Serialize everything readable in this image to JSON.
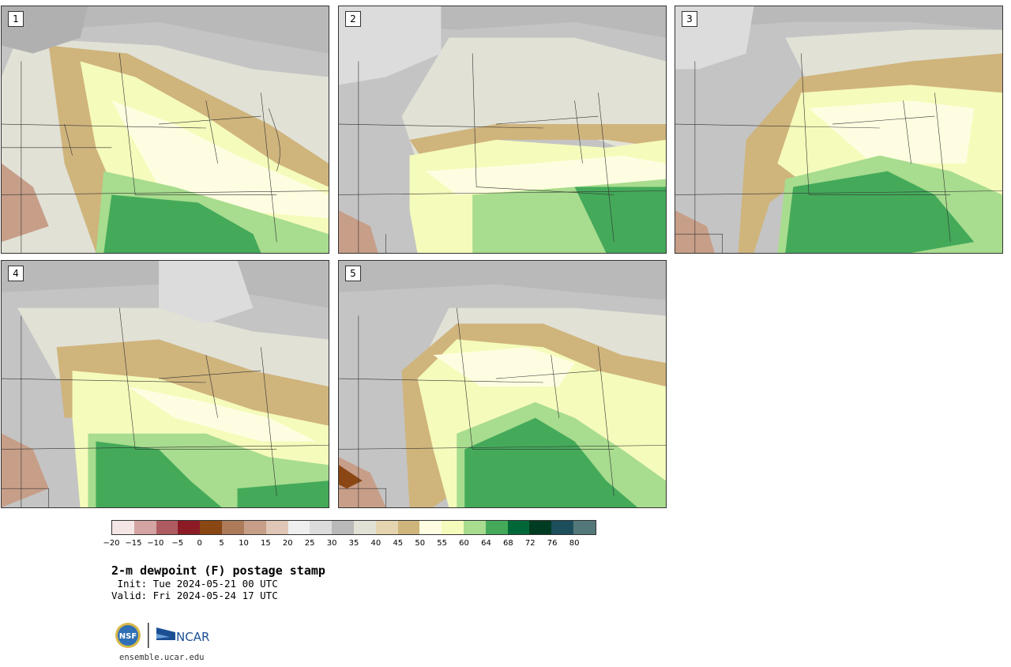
{
  "panels": [
    {
      "label": "1"
    },
    {
      "label": "2"
    },
    {
      "label": "3"
    },
    {
      "label": "4"
    },
    {
      "label": "5"
    }
  ],
  "colorbar": {
    "colors": [
      "#f3e6e4",
      "#d4a3a3",
      "#ae5c61",
      "#8c1b26",
      "#8a4714",
      "#ad7b59",
      "#c79e88",
      "#e0c6b6",
      "#efefef",
      "#dcdcdc",
      "#b9b9b9",
      "#e1e1d6",
      "#e4d5b0",
      "#cfb47c",
      "#fffde1",
      "#f5fbba",
      "#a8dc8e",
      "#44aa5a",
      "#006838",
      "#003c22",
      "#1d4e5c",
      "#54787a"
    ],
    "tick_labels": [
      "−20",
      "−15",
      "−10",
      "−5",
      "0",
      "5",
      "10",
      "15",
      "20",
      "25",
      "30",
      "35",
      "40",
      "45",
      "50",
      "55",
      "60",
      "64",
      "68",
      "72",
      "76",
      "80"
    ]
  },
  "title": "2-m dewpoint (F) postage stamp",
  "init": " Init: Tue 2024-05-21 00 UTC",
  "valid": "Valid: Fri 2024-05-24 17 UTC",
  "logos": {
    "nsf": "NSF",
    "ncar": "NCAR"
  },
  "website": "ensemble.ucar.edu"
}
